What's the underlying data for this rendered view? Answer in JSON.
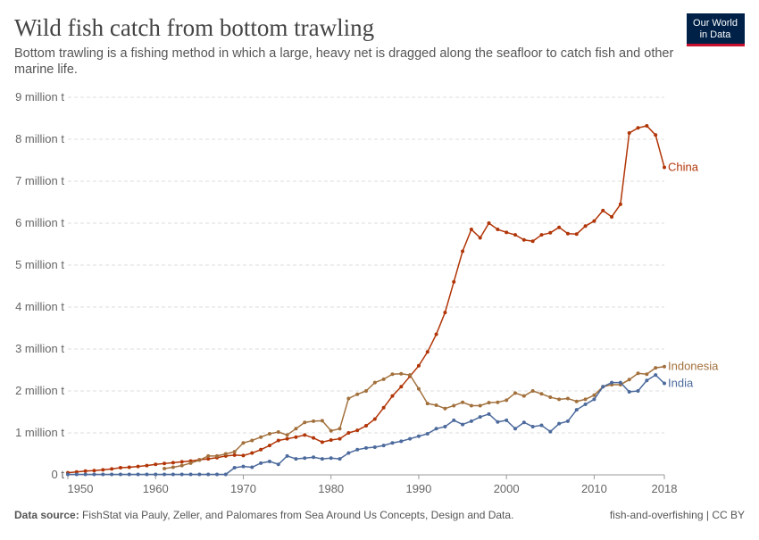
{
  "chart_data": {
    "type": "line",
    "title": "Wild fish catch from bottom trawling",
    "subtitle": "Bottom trawling is a fishing method in which a large, heavy net is dragged along the seafloor to catch fish and other marine life.",
    "logo": [
      "Our World",
      "in Data"
    ],
    "source_label": "Data source:",
    "source": "FishStat via Pauly, Zeller, and Palomares from Sea Around Us Concepts, Design and Data.",
    "footer_right": "fish-and-overfishing | CC BY",
    "x": [
      1950,
      1951,
      1952,
      1953,
      1954,
      1955,
      1956,
      1957,
      1958,
      1959,
      1960,
      1961,
      1962,
      1963,
      1964,
      1965,
      1966,
      1967,
      1968,
      1969,
      1970,
      1971,
      1972,
      1973,
      1974,
      1975,
      1976,
      1977,
      1978,
      1979,
      1980,
      1981,
      1982,
      1983,
      1984,
      1985,
      1986,
      1987,
      1988,
      1989,
      1990,
      1991,
      1992,
      1993,
      1994,
      1995,
      1996,
      1997,
      1998,
      1999,
      2000,
      2001,
      2002,
      2003,
      2004,
      2005,
      2006,
      2007,
      2008,
      2009,
      2010,
      2011,
      2012,
      2013,
      2014,
      2015,
      2016,
      2017,
      2018
    ],
    "xlim": [
      1950,
      2018
    ],
    "xticks": [
      1950,
      1960,
      1970,
      1980,
      1990,
      2000,
      2010,
      2018
    ],
    "ylim": [
      0,
      9
    ],
    "yticks": [
      {
        "value": 0,
        "label": "0 t"
      },
      {
        "value": 1,
        "label": "1 million t"
      },
      {
        "value": 2,
        "label": "2 million t"
      },
      {
        "value": 3,
        "label": "3 million t"
      },
      {
        "value": 4,
        "label": "4 million t"
      },
      {
        "value": 5,
        "label": "5 million t"
      },
      {
        "value": 6,
        "label": "6 million t"
      },
      {
        "value": 7,
        "label": "7 million t"
      },
      {
        "value": 8,
        "label": "8 million t"
      },
      {
        "value": 9,
        "label": "9 million t"
      }
    ],
    "grid": true,
    "series": [
      {
        "name": "China",
        "color": "#b13507",
        "values": [
          0.05,
          0.07,
          0.09,
          0.1,
          0.12,
          0.14,
          0.17,
          0.18,
          0.2,
          0.22,
          0.25,
          0.27,
          0.29,
          0.31,
          0.33,
          0.36,
          0.38,
          0.41,
          0.45,
          0.47,
          0.46,
          0.52,
          0.6,
          0.7,
          0.82,
          0.86,
          0.9,
          0.95,
          0.88,
          0.78,
          0.83,
          0.86,
          1.0,
          1.06,
          1.17,
          1.33,
          1.6,
          1.88,
          2.1,
          2.35,
          2.6,
          2.93,
          3.35,
          3.87,
          4.6,
          5.33,
          5.85,
          5.65,
          6.0,
          5.85,
          5.78,
          5.72,
          5.6,
          5.57,
          5.72,
          5.77,
          5.9,
          5.75,
          5.74,
          5.93,
          6.05,
          6.3,
          6.15,
          6.45,
          8.15,
          8.27,
          8.32,
          8.1,
          7.33
        ]
      },
      {
        "name": "Indonesia",
        "color": "#a2703c",
        "values": [
          null,
          null,
          null,
          null,
          null,
          null,
          null,
          null,
          null,
          null,
          null,
          0.15,
          0.18,
          0.22,
          0.28,
          0.35,
          0.45,
          0.45,
          0.5,
          0.55,
          0.76,
          0.82,
          0.9,
          0.98,
          1.02,
          0.95,
          1.1,
          1.25,
          1.28,
          1.29,
          1.05,
          1.1,
          1.82,
          1.92,
          2.0,
          2.2,
          2.28,
          2.4,
          2.41,
          2.38,
          2.05,
          1.7,
          1.66,
          1.58,
          1.65,
          1.73,
          1.65,
          1.65,
          1.72,
          1.73,
          1.78,
          1.95,
          1.88,
          2.0,
          1.93,
          1.85,
          1.8,
          1.82,
          1.75,
          1.8,
          1.9,
          2.1,
          2.15,
          2.15,
          2.27,
          2.42,
          2.4,
          2.55,
          2.58
        ]
      },
      {
        "name": "India",
        "color": "#4c6a9c",
        "values": [
          0.01,
          0.01,
          0.01,
          0.01,
          0.01,
          0.01,
          0.01,
          0.01,
          0.01,
          0.01,
          0.01,
          0.01,
          0.01,
          0.01,
          0.01,
          0.01,
          0.01,
          0.01,
          0.01,
          0.17,
          0.2,
          0.18,
          0.28,
          0.32,
          0.25,
          0.45,
          0.38,
          0.4,
          0.42,
          0.38,
          0.4,
          0.38,
          0.52,
          0.6,
          0.64,
          0.66,
          0.7,
          0.76,
          0.8,
          0.86,
          0.92,
          0.98,
          1.1,
          1.15,
          1.3,
          1.2,
          1.28,
          1.38,
          1.45,
          1.26,
          1.3,
          1.1,
          1.25,
          1.15,
          1.18,
          1.03,
          1.22,
          1.28,
          1.55,
          1.68,
          1.8,
          2.1,
          2.2,
          2.2,
          1.98,
          2.0,
          2.25,
          2.38,
          2.18
        ]
      }
    ]
  }
}
